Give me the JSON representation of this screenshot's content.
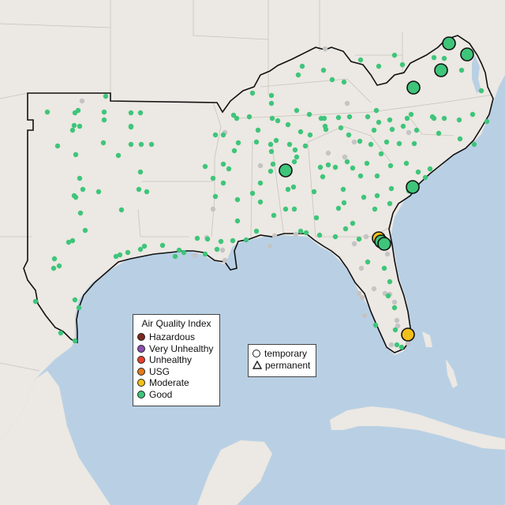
{
  "map": {
    "title": ""
  },
  "legend": {
    "title": "Air Quality Index",
    "categories": [
      {
        "label": "Hazardous",
        "color": "#7e2a1c"
      },
      {
        "label": "Very Unhealthy",
        "color": "#8e4fb0"
      },
      {
        "label": "Unhealthy",
        "color": "#e8402a"
      },
      {
        "label": "USG",
        "color": "#e5791b"
      },
      {
        "label": "Moderate",
        "color": "#f2c01a"
      },
      {
        "label": "Good",
        "color": "#3ec57a"
      }
    ]
  },
  "shape_legend": {
    "items": [
      {
        "label": "temporary",
        "shape": "circle"
      },
      {
        "label": "permanent",
        "shape": "triangle"
      }
    ]
  },
  "colors": {
    "water": "#b9d0e4",
    "land": "#ece8e3",
    "good": "#3ec57a",
    "moderate": "#f2c01a",
    "no_data": "#c4c4c4"
  },
  "large_monitors": [
    {
      "category": "Good",
      "shape": "circle"
    },
    {
      "category": "Good",
      "shape": "circle"
    },
    {
      "category": "Good",
      "shape": "circle"
    },
    {
      "category": "Good",
      "shape": "circle"
    },
    {
      "category": "Good",
      "shape": "circle"
    },
    {
      "category": "Moderate",
      "shape": "circle"
    },
    {
      "category": "Good",
      "shape": "circle"
    },
    {
      "category": "Good",
      "shape": "circle"
    },
    {
      "category": "Good",
      "shape": "circle"
    },
    {
      "category": "Moderate",
      "shape": "circle"
    }
  ]
}
